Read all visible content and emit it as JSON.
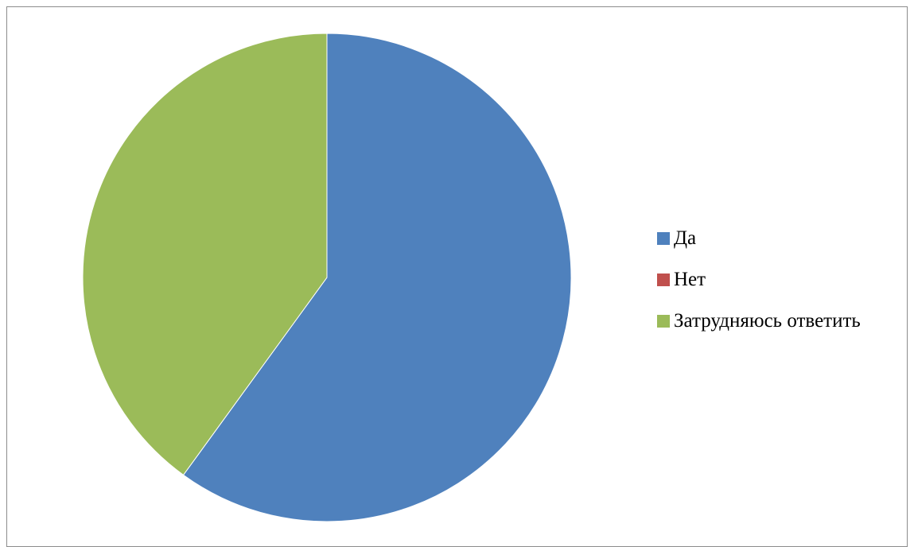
{
  "chart_data": {
    "type": "pie",
    "categories": [
      "Да",
      "Нет",
      "Затрудняюсь ответить"
    ],
    "values": [
      60,
      0,
      40
    ],
    "colors": [
      "#4f81bd",
      "#c0504d",
      "#9bbb59"
    ],
    "start_angle": "12 o'clock",
    "direction": "clockwise",
    "legend_position": "right"
  },
  "legend": {
    "items": [
      {
        "label": "Да",
        "color": "#4f81bd"
      },
      {
        "label": "Нет",
        "color": "#c0504d"
      },
      {
        "label": "Затрудняюсь ответить",
        "color": "#9bbb59"
      }
    ]
  }
}
